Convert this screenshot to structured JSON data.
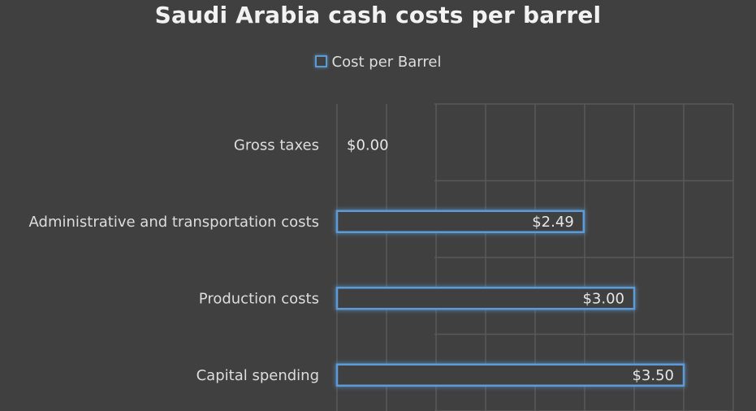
{
  "chart_data": {
    "type": "bar",
    "orientation": "horizontal",
    "title": "Saudi Arabia cash costs per barrel",
    "xlabel": "",
    "ylabel": "",
    "categories": [
      "Gross taxes",
      "Administrative and transportation costs",
      "Production costs",
      "Capital spending"
    ],
    "series": [
      {
        "name": "Cost per Barrel",
        "values": [
          0.0,
          2.49,
          3.0,
          3.5
        ],
        "labels": [
          "$0.00",
          "$2.49",
          "$3.00",
          "$3.50"
        ]
      }
    ],
    "xlim": [
      0,
      4
    ],
    "grid": true,
    "legend_position": "top",
    "colors": {
      "background": "#404040",
      "bar_outline": "#5b9bd5",
      "grid": "#595959"
    }
  }
}
